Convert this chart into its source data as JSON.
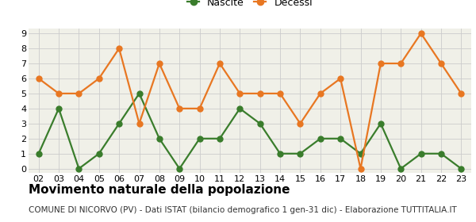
{
  "years": [
    "02",
    "03",
    "04",
    "05",
    "06",
    "07",
    "08",
    "09",
    "10",
    "11",
    "12",
    "13",
    "14",
    "15",
    "16",
    "17",
    "18",
    "19",
    "20",
    "21",
    "22",
    "23"
  ],
  "nascite": [
    1,
    4,
    0,
    1,
    3,
    5,
    2,
    0,
    2,
    2,
    4,
    3,
    1,
    1,
    2,
    2,
    1,
    3,
    0,
    1,
    1,
    0
  ],
  "decessi": [
    6,
    5,
    5,
    6,
    8,
    3,
    7,
    4,
    4,
    7,
    5,
    5,
    5,
    3,
    5,
    6,
    0,
    7,
    7,
    9,
    7,
    5
  ],
  "nascite_color": "#3a7d2c",
  "decessi_color": "#e87722",
  "plot_bg_color": "#f0f0e8",
  "fig_bg_color": "#ffffff",
  "grid_color": "#cccccc",
  "ylim_min": -0.3,
  "ylim_max": 9.3,
  "yticks": [
    0,
    1,
    2,
    3,
    4,
    5,
    6,
    7,
    8,
    9
  ],
  "title": "Movimento naturale della popolazione",
  "subtitle": "COMUNE DI NICORVO (PV) - Dati ISTAT (bilancio demografico 1 gen-31 dic) - Elaborazione TUTTITALIA.IT",
  "legend_nascite": "Nascite",
  "legend_decessi": "Decessi",
  "title_fontsize": 11,
  "subtitle_fontsize": 7.5,
  "legend_fontsize": 9,
  "tick_fontsize": 8,
  "marker_size": 5,
  "line_width": 1.6
}
